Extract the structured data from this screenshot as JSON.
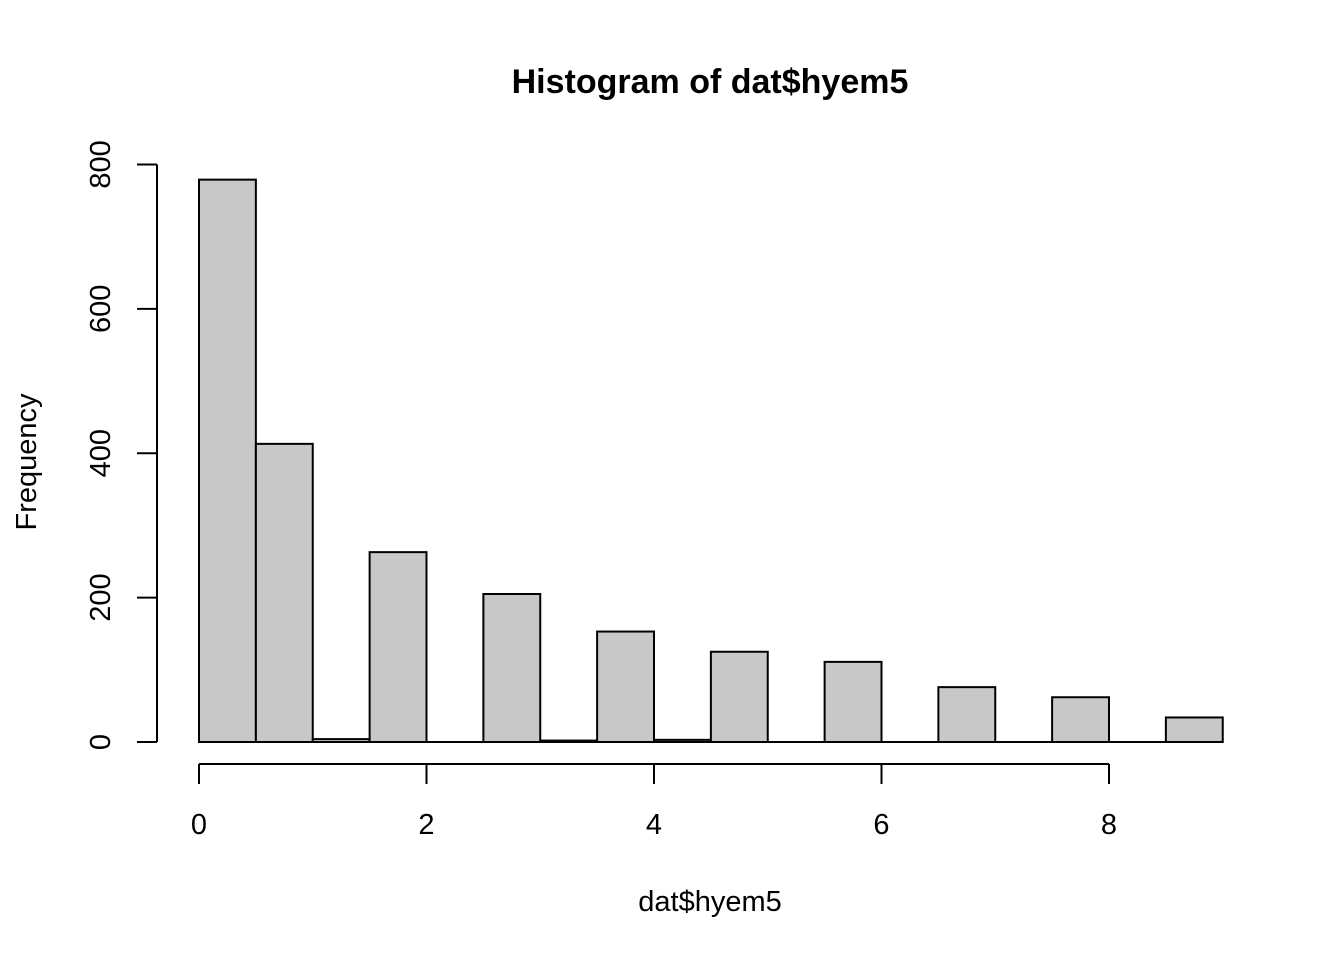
{
  "chart_data": {
    "type": "bar",
    "title": "Histogram of dat$hyem5",
    "xlabel": "dat$hyem5",
    "ylabel": "Frequency",
    "bins": [
      {
        "x0": 0.0,
        "x1": 0.5,
        "count": 779
      },
      {
        "x0": 0.5,
        "x1": 1.0,
        "count": 413
      },
      {
        "x0": 1.0,
        "x1": 1.5,
        "count": 4
      },
      {
        "x0": 1.5,
        "x1": 2.0,
        "count": 263
      },
      {
        "x0": 2.0,
        "x1": 2.5,
        "count": 0
      },
      {
        "x0": 2.5,
        "x1": 3.0,
        "count": 205
      },
      {
        "x0": 3.0,
        "x1": 3.5,
        "count": 2
      },
      {
        "x0": 3.5,
        "x1": 4.0,
        "count": 153
      },
      {
        "x0": 4.0,
        "x1": 4.5,
        "count": 3
      },
      {
        "x0": 4.5,
        "x1": 5.0,
        "count": 125
      },
      {
        "x0": 5.0,
        "x1": 5.5,
        "count": 0
      },
      {
        "x0": 5.5,
        "x1": 6.0,
        "count": 111
      },
      {
        "x0": 6.0,
        "x1": 6.5,
        "count": 0
      },
      {
        "x0": 6.5,
        "x1": 7.0,
        "count": 76
      },
      {
        "x0": 7.0,
        "x1": 7.5,
        "count": 0
      },
      {
        "x0": 7.5,
        "x1": 8.0,
        "count": 62
      },
      {
        "x0": 8.0,
        "x1": 8.5,
        "count": 0
      },
      {
        "x0": 8.5,
        "x1": 9.0,
        "count": 34
      }
    ],
    "xticks": [
      0,
      2,
      4,
      6,
      8
    ],
    "yticks": [
      0,
      200,
      400,
      600,
      800
    ],
    "xlim": [
      0,
      9
    ],
    "ylim": [
      0,
      800
    ],
    "grid": false,
    "legend": "none",
    "colors": {
      "bar_fill": "#c8c8c8",
      "bar_stroke": "#000000"
    }
  }
}
